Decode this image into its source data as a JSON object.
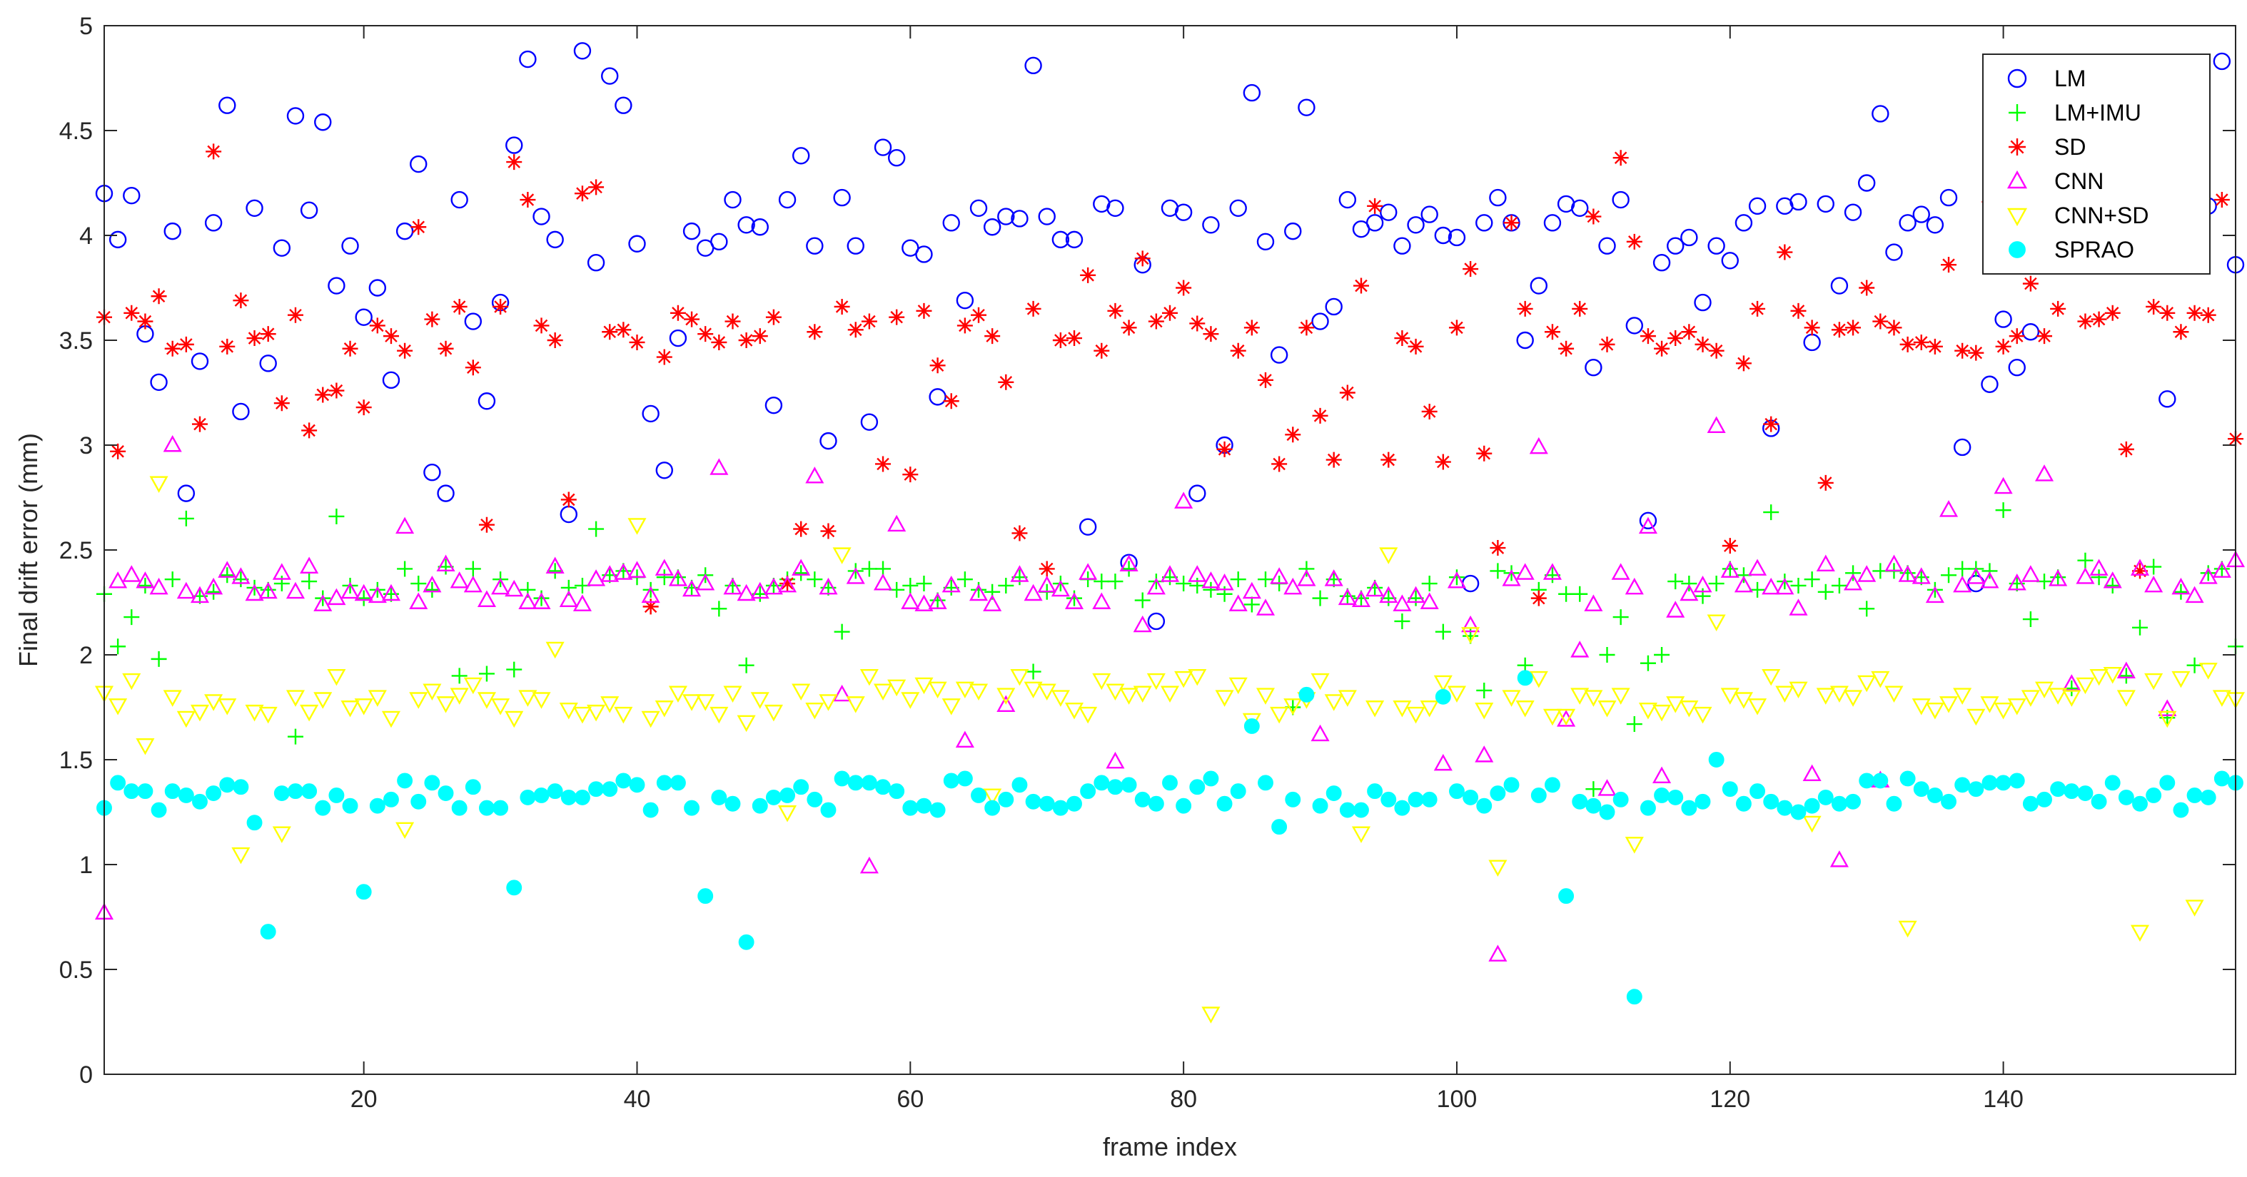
{
  "chart_data": {
    "type": "scatter",
    "title": "",
    "xlabel": "frame index",
    "ylabel": "Final drift error (mm)",
    "xlim": [
      1,
      157
    ],
    "ylim": [
      0,
      5
    ],
    "x_ticks": [
      20,
      40,
      60,
      80,
      100,
      120,
      140
    ],
    "y_ticks": [
      0,
      0.5,
      1,
      1.5,
      2,
      2.5,
      3,
      3.5,
      4,
      4.5,
      5
    ],
    "grid": false,
    "legend_position": "top-right",
    "x": [
      1,
      2,
      3,
      4,
      5,
      6,
      7,
      8,
      9,
      10,
      11,
      12,
      13,
      14,
      15,
      16,
      17,
      18,
      19,
      20,
      21,
      22,
      23,
      24,
      25,
      26,
      27,
      28,
      29,
      30,
      31,
      32,
      33,
      34,
      35,
      36,
      37,
      38,
      39,
      40,
      41,
      42,
      43,
      44,
      45,
      46,
      47,
      48,
      49,
      50,
      51,
      52,
      53,
      54,
      55,
      56,
      57,
      58,
      59,
      60,
      61,
      62,
      63,
      64,
      65,
      66,
      67,
      68,
      69,
      70,
      71,
      72,
      73,
      74,
      75,
      76,
      77,
      78,
      79,
      80,
      81,
      82,
      83,
      84,
      85,
      86,
      87,
      88,
      89,
      90,
      91,
      92,
      93,
      94,
      95,
      96,
      97,
      98,
      99,
      100,
      101,
      102,
      103,
      104,
      105,
      106,
      107,
      108,
      109,
      110,
      111,
      112,
      113,
      114,
      115,
      116,
      117,
      118,
      119,
      120,
      121,
      122,
      123,
      124,
      125,
      126,
      127,
      128,
      129,
      130,
      131,
      132,
      133,
      134,
      135,
      136,
      137,
      138,
      139,
      140,
      141,
      142,
      143,
      144,
      145,
      146,
      147,
      148,
      149,
      150,
      151,
      152,
      153,
      154,
      155,
      156,
      157
    ],
    "series": [
      {
        "name": "LM",
        "marker": "circle",
        "color": "#0000ff",
        "values": [
          4.2,
          3.98,
          4.19,
          3.53,
          3.3,
          4.02,
          2.77,
          3.4,
          4.06,
          4.62,
          3.16,
          4.13,
          3.39,
          3.94,
          4.57,
          4.12,
          4.54,
          3.76,
          3.95,
          3.61,
          3.75,
          3.31,
          4.02,
          4.34,
          2.87,
          2.77,
          4.17,
          3.59,
          3.21,
          3.68,
          4.43,
          4.84,
          4.09,
          3.98,
          2.67,
          4.88,
          3.87,
          4.76,
          4.62,
          3.96,
          3.15,
          2.88,
          3.51,
          4.02,
          3.94,
          3.97,
          4.17,
          4.05,
          4.04,
          3.19,
          4.17,
          4.38,
          3.95,
          3.02,
          4.18,
          3.95,
          3.11,
          4.42,
          4.37,
          3.94,
          3.91,
          3.23,
          4.06,
          3.69,
          4.13,
          4.04,
          4.09,
          4.08,
          4.81,
          4.09,
          3.98,
          3.98,
          2.61,
          4.15,
          4.13,
          2.44,
          3.86,
          2.16,
          4.13,
          4.11,
          2.77,
          4.05,
          3.0,
          4.13,
          4.68,
          3.97,
          3.43,
          4.02,
          4.61,
          3.59,
          3.66,
          4.17,
          4.03,
          4.06,
          4.11,
          3.95,
          4.05,
          4.1,
          4.0,
          3.99,
          2.34,
          4.06,
          4.18,
          4.06,
          3.5,
          3.76,
          4.06,
          4.15,
          4.13,
          3.37,
          3.95,
          4.17,
          3.57,
          2.64,
          3.87,
          3.95,
          3.99,
          3.68,
          3.95,
          3.88,
          4.06,
          4.14,
          3.08,
          4.14,
          4.16,
          3.49,
          4.15,
          3.76,
          4.11,
          4.25,
          4.58,
          3.92,
          4.06,
          4.1,
          4.05,
          4.18,
          2.99,
          2.34,
          3.29,
          3.6,
          3.37,
          3.54,
          4.12,
          4.06,
          3.9,
          4.01,
          4.12,
          4.16,
          4.07,
          4.09,
          3.95,
          3.22,
          4.05,
          4.01,
          4.14,
          4.83,
          3.86
        ]
      },
      {
        "name": "LM+IMU",
        "marker": "plus",
        "color": "#00ff00",
        "values": [
          2.29,
          2.04,
          2.18,
          2.33,
          1.98,
          2.36,
          2.65,
          2.28,
          2.3,
          2.38,
          2.36,
          2.32,
          2.31,
          2.34,
          1.61,
          2.35,
          2.27,
          2.66,
          2.33,
          2.27,
          2.31,
          2.29,
          2.41,
          2.34,
          2.31,
          2.42,
          1.9,
          2.41,
          1.91,
          2.36,
          1.93,
          2.31,
          2.27,
          2.4,
          2.32,
          2.33,
          2.6,
          2.38,
          2.4,
          2.37,
          2.31,
          2.37,
          2.37,
          2.32,
          2.38,
          2.22,
          2.33,
          1.95,
          2.29,
          2.33,
          2.36,
          2.39,
          2.36,
          2.32,
          2.11,
          2.4,
          2.41,
          2.41,
          2.31,
          2.33,
          2.34,
          2.26,
          2.32,
          2.36,
          2.31,
          2.3,
          2.33,
          2.37,
          1.92,
          2.3,
          2.34,
          2.27,
          2.36,
          2.35,
          2.35,
          2.41,
          2.26,
          2.35,
          2.37,
          2.34,
          2.33,
          2.31,
          2.29,
          2.36,
          2.24,
          2.36,
          2.34,
          1.75,
          2.41,
          2.27,
          2.36,
          2.28,
          2.27,
          2.32,
          2.27,
          2.16,
          2.27,
          2.34,
          2.11,
          2.37,
          2.09,
          1.83,
          2.4,
          2.39,
          1.95,
          2.31,
          2.38,
          2.29,
          2.29,
          1.36,
          2.0,
          2.18,
          1.67,
          1.96,
          2.0,
          2.35,
          2.34,
          2.28,
          2.34,
          2.41,
          2.38,
          2.31,
          2.68,
          2.35,
          2.33,
          2.36,
          2.3,
          2.33,
          2.39,
          2.22,
          2.4,
          2.4,
          2.39,
          2.37,
          2.31,
          2.38,
          2.41,
          2.41,
          2.4,
          2.69,
          2.34,
          2.17,
          2.35,
          2.37,
          1.84,
          2.45,
          2.37,
          2.33,
          1.9,
          2.13,
          2.42,
          1.7,
          2.3,
          1.95,
          2.39,
          2.41,
          2.04
        ]
      },
      {
        "name": "SD",
        "marker": "asterisk",
        "color": "#ff0000",
        "values": [
          3.61,
          2.97,
          3.63,
          3.59,
          3.71,
          3.46,
          3.48,
          3.1,
          4.4,
          3.47,
          3.69,
          3.51,
          3.53,
          3.2,
          3.62,
          3.07,
          3.24,
          3.26,
          3.46,
          3.18,
          3.57,
          3.52,
          3.45,
          4.04,
          3.6,
          3.46,
          3.66,
          3.37,
          2.62,
          3.66,
          4.35,
          4.17,
          3.57,
          3.5,
          2.74,
          4.2,
          4.23,
          3.54,
          3.55,
          3.49,
          2.23,
          3.42,
          3.63,
          3.6,
          3.53,
          3.49,
          3.59,
          3.5,
          3.52,
          3.61,
          2.34,
          2.6,
          3.54,
          2.59,
          3.66,
          3.55,
          3.59,
          2.91,
          3.61,
          2.86,
          3.64,
          3.38,
          3.21,
          3.57,
          3.62,
          3.52,
          3.3,
          2.58,
          3.65,
          2.41,
          3.5,
          3.51,
          3.81,
          3.45,
          3.64,
          3.56,
          3.89,
          3.59,
          3.63,
          3.75,
          3.58,
          3.53,
          2.98,
          3.45,
          3.56,
          3.31,
          2.91,
          3.05,
          3.56,
          3.14,
          2.93,
          3.25,
          3.76,
          4.14,
          2.93,
          3.51,
          3.47,
          3.16,
          2.92,
          3.56,
          3.84,
          2.96,
          2.51,
          4.06,
          3.65,
          2.27,
          3.54,
          3.46,
          3.65,
          4.09,
          3.48,
          4.37,
          3.97,
          3.52,
          3.46,
          3.51,
          3.54,
          3.48,
          3.45,
          2.52,
          3.39,
          3.65,
          3.1,
          3.92,
          3.64,
          3.56,
          2.82,
          3.55,
          3.56,
          3.75,
          3.59,
          3.56,
          3.48,
          3.49,
          3.47,
          3.86,
          3.45,
          3.44,
          4.16,
          3.47,
          3.52,
          3.77,
          3.52,
          3.65,
          3.93,
          3.59,
          3.6,
          3.63,
          2.98,
          2.4,
          3.66,
          3.63,
          3.54,
          3.63,
          3.62,
          4.17,
          3.03
        ]
      },
      {
        "name": "CNN",
        "marker": "triangle-up",
        "color": "#ff00ff",
        "values": [
          0.77,
          2.35,
          2.38,
          2.35,
          2.32,
          3.0,
          2.3,
          2.28,
          2.32,
          2.4,
          2.37,
          2.29,
          2.3,
          2.39,
          2.3,
          2.42,
          2.24,
          2.27,
          2.3,
          2.29,
          2.28,
          2.29,
          2.61,
          2.25,
          2.33,
          2.43,
          2.35,
          2.33,
          2.26,
          2.32,
          2.31,
          2.25,
          2.25,
          2.42,
          2.26,
          2.24,
          2.36,
          2.38,
          2.39,
          2.4,
          2.28,
          2.41,
          2.36,
          2.31,
          2.34,
          2.89,
          2.32,
          2.29,
          2.3,
          2.32,
          2.33,
          2.41,
          2.85,
          2.32,
          1.81,
          2.37,
          0.99,
          2.34,
          2.62,
          2.25,
          2.24,
          2.25,
          2.33,
          1.59,
          2.29,
          2.24,
          1.76,
          2.38,
          2.29,
          2.33,
          2.31,
          2.25,
          2.39,
          2.25,
          1.49,
          2.43,
          2.14,
          2.32,
          2.38,
          2.73,
          2.38,
          2.35,
          2.34,
          2.24,
          2.3,
          2.22,
          2.37,
          2.32,
          2.36,
          1.62,
          2.36,
          2.27,
          2.26,
          2.31,
          2.28,
          2.24,
          2.28,
          2.25,
          1.48,
          2.35,
          2.14,
          1.52,
          0.57,
          2.36,
          2.39,
          2.99,
          2.39,
          1.69,
          2.02,
          2.24,
          1.36,
          2.39,
          2.32,
          2.61,
          1.42,
          2.21,
          2.29,
          2.33,
          3.09,
          2.4,
          2.33,
          2.41,
          2.32,
          2.32,
          2.22,
          1.43,
          2.43,
          1.02,
          2.34,
          2.38,
          1.4,
          2.43,
          2.38,
          2.37,
          2.28,
          2.69,
          2.33,
          2.37,
          2.35,
          2.8,
          2.34,
          2.38,
          2.86,
          2.36,
          1.86,
          2.37,
          2.41,
          2.35,
          1.92,
          2.41,
          2.33,
          1.74,
          2.32,
          2.28,
          2.37,
          2.4,
          2.45
        ]
      },
      {
        "name": "CNN+SD",
        "marker": "triangle-down",
        "color": "#ffff00",
        "values": [
          1.82,
          1.76,
          1.88,
          1.57,
          2.82,
          1.8,
          1.7,
          1.73,
          1.78,
          1.76,
          1.05,
          1.73,
          1.72,
          1.15,
          1.8,
          1.73,
          1.79,
          1.9,
          1.75,
          1.76,
          1.8,
          1.7,
          1.17,
          1.79,
          1.83,
          1.77,
          1.81,
          1.86,
          1.79,
          1.76,
          1.7,
          1.8,
          1.79,
          2.03,
          1.74,
          1.72,
          1.73,
          1.77,
          1.72,
          2.62,
          1.7,
          1.75,
          1.82,
          1.78,
          1.78,
          1.72,
          1.82,
          1.68,
          1.79,
          1.73,
          1.25,
          1.83,
          1.74,
          1.78,
          2.48,
          1.77,
          1.9,
          1.83,
          1.85,
          1.79,
          1.86,
          1.84,
          1.76,
          1.84,
          1.83,
          1.33,
          1.81,
          1.9,
          1.84,
          1.83,
          1.8,
          1.74,
          1.72,
          1.88,
          1.83,
          1.81,
          1.82,
          1.88,
          1.82,
          1.89,
          1.9,
          0.29,
          1.8,
          1.86,
          1.69,
          1.81,
          1.72,
          1.76,
          1.79,
          1.88,
          1.78,
          1.8,
          1.15,
          1.75,
          2.48,
          1.75,
          1.72,
          1.75,
          1.87,
          1.82,
          2.1,
          1.74,
          0.99,
          1.8,
          1.75,
          1.89,
          1.71,
          1.71,
          1.81,
          1.8,
          1.75,
          1.81,
          1.1,
          1.74,
          1.73,
          1.77,
          1.75,
          1.72,
          2.16,
          1.81,
          1.79,
          1.76,
          1.9,
          1.82,
          1.84,
          1.2,
          1.81,
          1.82,
          1.8,
          1.87,
          1.89,
          1.82,
          0.7,
          1.76,
          1.74,
          1.77,
          1.81,
          1.71,
          1.77,
          1.74,
          1.76,
          1.8,
          1.84,
          1.81,
          1.8,
          1.86,
          1.9,
          1.91,
          1.8,
          0.68,
          1.88,
          1.7,
          1.89,
          0.8,
          1.93,
          1.8,
          1.79
        ]
      },
      {
        "name": "SPRAO",
        "marker": "filled-circle",
        "color": "#00ffff",
        "values": [
          1.27,
          1.39,
          1.35,
          1.35,
          1.26,
          1.35,
          1.33,
          1.3,
          1.34,
          1.38,
          1.37,
          1.2,
          0.68,
          1.34,
          1.35,
          1.35,
          1.27,
          1.33,
          1.28,
          0.87,
          1.28,
          1.31,
          1.4,
          1.3,
          1.39,
          1.34,
          1.27,
          1.37,
          1.27,
          1.27,
          0.89,
          1.32,
          1.33,
          1.35,
          1.32,
          1.32,
          1.36,
          1.36,
          1.4,
          1.38,
          1.26,
          1.39,
          1.39,
          1.27,
          0.85,
          1.32,
          1.29,
          0.63,
          1.28,
          1.32,
          1.33,
          1.37,
          1.31,
          1.26,
          1.41,
          1.39,
          1.39,
          1.37,
          1.35,
          1.27,
          1.28,
          1.26,
          1.4,
          1.41,
          1.33,
          1.27,
          1.31,
          1.38,
          1.3,
          1.29,
          1.27,
          1.29,
          1.35,
          1.39,
          1.37,
          1.38,
          1.31,
          1.29,
          1.39,
          1.28,
          1.37,
          1.41,
          1.29,
          1.35,
          1.66,
          1.39,
          1.18,
          1.31,
          1.81,
          1.28,
          1.34,
          1.26,
          1.26,
          1.35,
          1.31,
          1.27,
          1.31,
          1.31,
          1.8,
          1.35,
          1.32,
          1.28,
          1.34,
          1.38,
          1.89,
          1.33,
          1.38,
          0.85,
          1.3,
          1.28,
          1.25,
          1.31,
          0.37,
          1.27,
          1.33,
          1.32,
          1.27,
          1.3,
          1.5,
          1.36,
          1.29,
          1.35,
          1.3,
          1.27,
          1.25,
          1.28,
          1.32,
          1.29,
          1.3,
          1.4,
          1.4,
          1.29,
          1.41,
          1.36,
          1.33,
          1.3,
          1.38,
          1.36,
          1.39,
          1.39,
          1.4,
          1.29,
          1.31,
          1.36,
          1.35,
          1.34,
          1.3,
          1.39,
          1.32,
          1.29,
          1.33,
          1.39,
          1.26,
          1.33,
          1.32,
          1.41,
          1.39
        ]
      }
    ]
  }
}
